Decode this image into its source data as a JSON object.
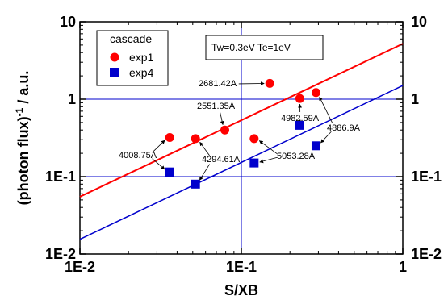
{
  "chart_data": {
    "type": "scatter",
    "xlabel": "S/XB",
    "ylabel": "(photon flux)",
    "ylabel_sup": "-1",
    "ylabel_tail": " / a.u.",
    "xscale": "log",
    "yscale": "log",
    "xlim": [
      0.01,
      1
    ],
    "ylim": [
      0.01,
      10
    ],
    "x_ticks": [
      {
        "v": 0.01,
        "label": "1E-2"
      },
      {
        "v": 0.1,
        "label": "1E-1"
      },
      {
        "v": 1,
        "label": "1"
      }
    ],
    "y_ticks": [
      {
        "v": 0.01,
        "label": "1E-2"
      },
      {
        "v": 0.1,
        "label": "1E-1"
      },
      {
        "v": 1,
        "label": "1"
      },
      {
        "v": 10,
        "label": "10"
      }
    ],
    "reference_lines": {
      "x": 0.1,
      "y": [
        0.1,
        1
      ],
      "color": "#0000cc"
    },
    "legend": {
      "title": "cascade",
      "placement": "top-left",
      "entries": [
        {
          "name": "exp1",
          "marker": "circle",
          "color": "#ff0000"
        },
        {
          "name": "exp4",
          "marker": "square",
          "color": "#0000cc"
        }
      ]
    },
    "condition_label": "Tw=0.3eV Te=1eV",
    "series": [
      {
        "name": "exp1",
        "color": "#ff0000",
        "x": [
          0.036,
          0.052,
          0.079,
          0.12,
          0.15,
          0.23,
          0.29
        ],
        "y": [
          0.32,
          0.31,
          0.4,
          0.31,
          1.6,
          1.02,
          1.22
        ]
      },
      {
        "name": "exp4",
        "color": "#0000cc",
        "x": [
          0.036,
          0.052,
          0.12,
          0.23,
          0.29
        ],
        "y": [
          0.115,
          0.08,
          0.15,
          0.46,
          0.25
        ]
      }
    ],
    "fit_lines": [
      {
        "series": "exp1",
        "color": "#ff0000",
        "x": [
          0.01,
          1
        ],
        "y": [
          0.055,
          5.2
        ]
      },
      {
        "series": "exp4",
        "color": "#0000cc",
        "x": [
          0.01,
          1
        ],
        "y": [
          0.0155,
          1.5
        ]
      }
    ],
    "annotations": [
      {
        "text": "2681.42A",
        "point": [
          0.15,
          1.6
        ]
      },
      {
        "text": "2551.35A",
        "point": [
          0.079,
          0.4
        ]
      },
      {
        "text": "4982.59A",
        "point": [
          0.23,
          1.02
        ]
      },
      {
        "text": "4886.9A",
        "point": [
          0.29,
          1.22
        ]
      },
      {
        "text": "4008.75A",
        "point": [
          0.036,
          0.32
        ]
      },
      {
        "text": "4294.61A",
        "point": [
          0.052,
          0.31
        ]
      },
      {
        "text": "5053.28A",
        "point": [
          0.12,
          0.31
        ]
      }
    ]
  }
}
